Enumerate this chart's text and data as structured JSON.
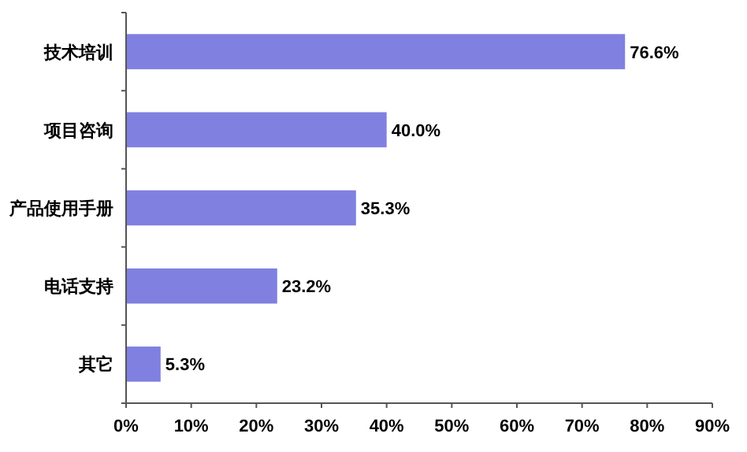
{
  "chart_data": {
    "type": "bar",
    "orientation": "horizontal",
    "categories": [
      "技术培训",
      "项目咨询",
      "产品使用手册",
      "电话支持",
      "其它"
    ],
    "values": [
      76.6,
      40.0,
      35.3,
      23.2,
      5.3
    ],
    "value_labels": [
      "76.6%",
      "40.0%",
      "35.3%",
      "23.2%",
      "5.3%"
    ],
    "color": "#8080e0",
    "xlim": [
      0,
      90
    ],
    "xticks": [
      {
        "value": 0,
        "label": "0%"
      },
      {
        "value": 10,
        "label": "10%"
      },
      {
        "value": 20,
        "label": "20%"
      },
      {
        "value": 30,
        "label": "30%"
      },
      {
        "value": 40,
        "label": "40%"
      },
      {
        "value": 50,
        "label": "50%"
      },
      {
        "value": 60,
        "label": "60%"
      },
      {
        "value": 70,
        "label": "70%"
      },
      {
        "value": 80,
        "label": "80%"
      },
      {
        "value": 90,
        "label": "90%"
      }
    ],
    "grid": false
  }
}
